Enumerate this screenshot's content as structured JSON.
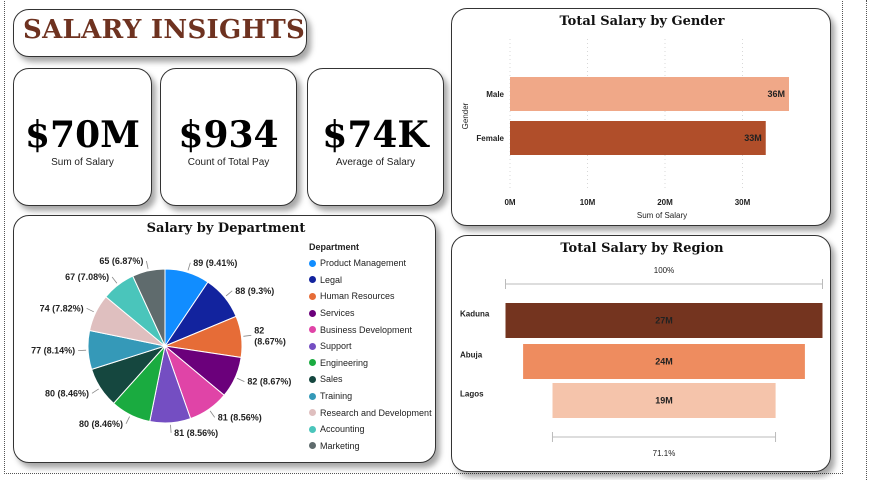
{
  "header": {
    "title": "SALARY INSIGHTS"
  },
  "kpis": [
    {
      "value": "$70M",
      "label": "Sum of Salary"
    },
    {
      "value": "$934",
      "label": "Count of Total Pay"
    },
    {
      "value": "$74K",
      "label": "Average of Salary"
    }
  ],
  "chart_data": [
    {
      "type": "bar",
      "orientation": "horizontal",
      "title": "Total Salary by Gender",
      "xlabel": "Sum of Salary",
      "ylabel": "Gender",
      "categories": [
        "Male",
        "Female"
      ],
      "values": [
        36,
        33
      ],
      "value_labels": [
        "36M",
        "33M"
      ],
      "xticks": [
        "0M",
        "10M",
        "20M",
        "30M"
      ],
      "xlim": [
        0,
        40
      ],
      "colors": [
        "#f0a888",
        "#b04e2a"
      ],
      "grid": true
    },
    {
      "type": "pie",
      "title": "Salary by Department",
      "legend_title": "Department",
      "legend_position": "right",
      "categories": [
        "Product Management",
        "Legal",
        "Human Resources",
        "Services",
        "Business Development",
        "Support",
        "Engineering",
        "Sales",
        "Training",
        "Research and Development",
        "Accounting",
        "Marketing"
      ],
      "values": [
        89,
        88,
        82,
        82,
        81,
        81,
        80,
        80,
        77,
        74,
        67,
        65
      ],
      "labels": [
        "89 (9.41%)",
        "88 (9.3%)",
        "82 (8.67%)",
        "82 (8.67%)",
        "81 (8.56%)",
        "81 (8.56%)",
        "80 (8.46%)",
        "80 (8.46%)",
        "77 (8.14%)",
        "74 (7.82%)",
        "67 (7.08%)",
        "65 (6.87%)"
      ],
      "colors": [
        "#118dff",
        "#12239e",
        "#e66c37",
        "#6b007b",
        "#e044a7",
        "#744ec2",
        "#1aab40",
        "#15473f",
        "#3599b8",
        "#dfbfbf",
        "#4ac5bb",
        "#5f6b6d"
      ]
    },
    {
      "type": "funnel",
      "title": "Total Salary by Region",
      "categories": [
        "Kaduna",
        "Abuja",
        "Lagos"
      ],
      "values": [
        27,
        24,
        19
      ],
      "value_labels": [
        "27M",
        "24M",
        "19M"
      ],
      "top_percent_label": "100%",
      "bottom_percent_label": "71.1%",
      "colors": [
        "#74341f",
        "#ee8c5f",
        "#f5c4ab"
      ]
    }
  ]
}
